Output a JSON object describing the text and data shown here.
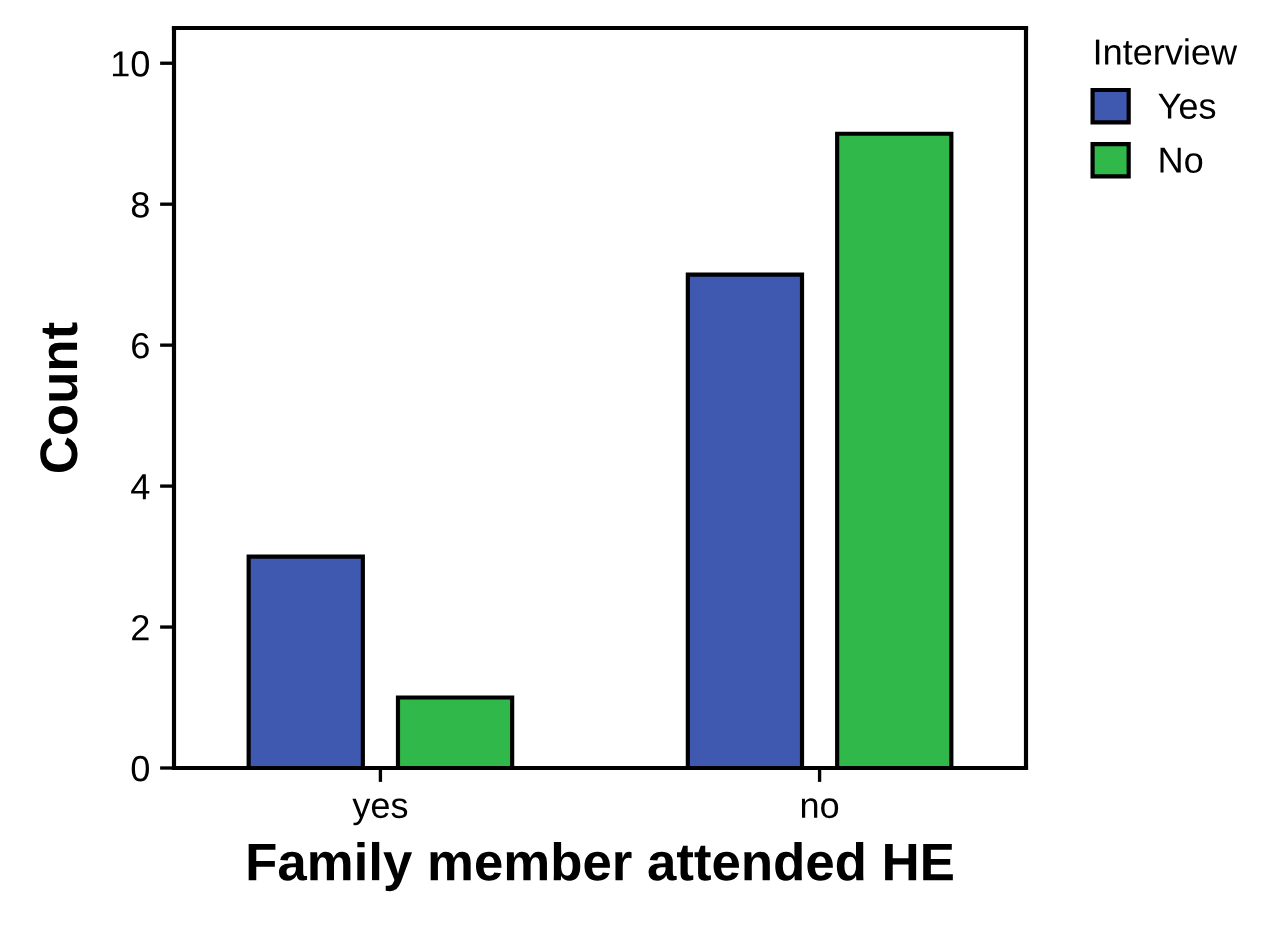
{
  "chart_data": {
    "type": "bar",
    "xlabel": "Family member attended HE",
    "ylabel": "Count",
    "categories": [
      "yes",
      "no"
    ],
    "series": [
      {
        "name": "Yes",
        "color": "#3f58b0",
        "values": [
          3,
          7
        ]
      },
      {
        "name": "No",
        "color": "#30b84a",
        "values": [
          1,
          9
        ]
      }
    ],
    "legend_title": "Interview",
    "legend": "top right",
    "ylim": [
      0,
      10.5
    ],
    "yticks": [
      0,
      2,
      4,
      6,
      8,
      10
    ],
    "grid": false
  }
}
